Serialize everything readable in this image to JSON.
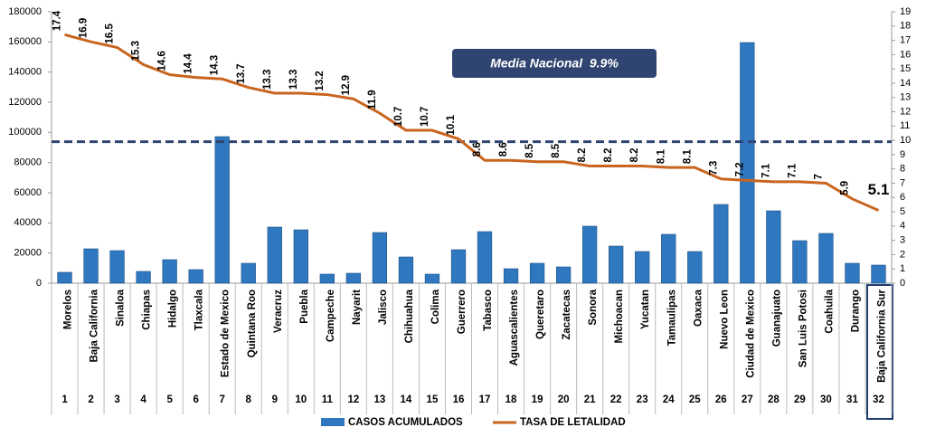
{
  "chart_data": {
    "type": "bar_line",
    "categories": [
      "Morelos",
      "Baja California",
      "Sinaloa",
      "Chiapas",
      "Hidalgo",
      "Tlaxcala",
      "Estado de Mexico",
      "Quintana Roo",
      "Veracruz",
      "Puebla",
      "Campeche",
      "Nayarit",
      "Jalisco",
      "Chihuahua",
      "Colima",
      "Guerrero",
      "Tabasco",
      "Aguascalientes",
      "Queretaro",
      "Zacatecas",
      "Sonora",
      "Michoacan",
      "Yucatan",
      "Tamaulipas",
      "Oaxaca",
      "Nuevo Leon",
      "Ciudad de Mexico",
      "Guanajuato",
      "San Luis Potosi",
      "Coahuila",
      "Durango",
      "Baja California Sur"
    ],
    "category_numbers": [
      1,
      2,
      3,
      4,
      5,
      6,
      7,
      8,
      9,
      10,
      11,
      12,
      13,
      14,
      15,
      16,
      17,
      18,
      19,
      20,
      21,
      22,
      23,
      24,
      25,
      26,
      27,
      28,
      29,
      30,
      31,
      32
    ],
    "series": [
      {
        "name": "CASOS ACUMULADOS",
        "color": "#2f78c0",
        "kind": "bar",
        "axis": "y",
        "values": [
          7200,
          22800,
          21600,
          7800,
          15600,
          9000,
          97200,
          13200,
          37200,
          35400,
          6000,
          6600,
          33600,
          17400,
          6000,
          22200,
          34200,
          9600,
          13200,
          10800,
          37800,
          24600,
          21000,
          32400,
          21000,
          52200,
          159600,
          48000,
          28200,
          33000,
          13200,
          12000
        ]
      },
      {
        "name": "TASA DE LETALIDAD",
        "color": "#c9651f",
        "kind": "line",
        "axis": "y2",
        "values": [
          17.4,
          16.9,
          16.5,
          15.3,
          14.6,
          14.4,
          14.3,
          13.7,
          13.3,
          13.3,
          13.2,
          12.9,
          11.9,
          10.7,
          10.7,
          10.1,
          8.6,
          8.6,
          8.5,
          8.5,
          8.2,
          8.2,
          8.2,
          8.1,
          8.1,
          7.3,
          7.2,
          7.1,
          7.1,
          7,
          5.9,
          5.1
        ]
      }
    ],
    "reference_line": {
      "value": 9.9,
      "label": "Media Nacional  9.9%",
      "axis": "y2",
      "color": "#2f4470"
    },
    "ylim": [
      0,
      180000
    ],
    "yticks": [
      0,
      20000,
      40000,
      60000,
      80000,
      100000,
      120000,
      140000,
      160000,
      180000
    ],
    "y2lim": [
      0,
      19
    ],
    "y2ticks": [
      0,
      1,
      2,
      3,
      4,
      5,
      6,
      7,
      8,
      9,
      10,
      11,
      12,
      13,
      14,
      15,
      16,
      17,
      18,
      19
    ]
  }
}
